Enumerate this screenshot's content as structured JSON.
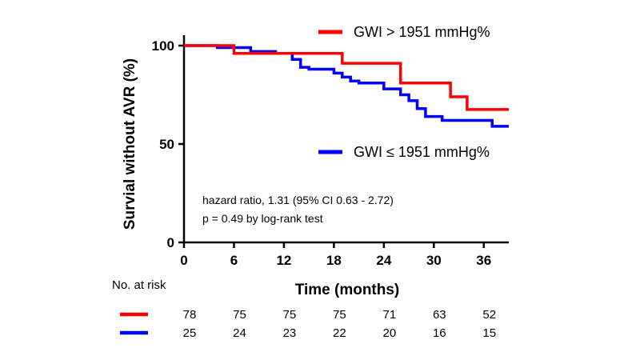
{
  "chart_data": {
    "type": "line",
    "subtype": "kaplan-meier",
    "xlabel": "Time (months)",
    "ylabel": "Survial without AVR (%)",
    "xlim": [
      0,
      39
    ],
    "ylim": [
      0,
      100
    ],
    "xticks": [
      0,
      6,
      12,
      18,
      24,
      30,
      36
    ],
    "yticks": [
      0,
      50,
      100
    ],
    "grid": false,
    "legend_placement": "top-right",
    "series": [
      {
        "name": "GWI > 1951 mmHg%",
        "color": "#ff0000",
        "points": [
          [
            0,
            100
          ],
          [
            6,
            100
          ],
          [
            6,
            96
          ],
          [
            12,
            96
          ],
          [
            19,
            96
          ],
          [
            19,
            91
          ],
          [
            26,
            91
          ],
          [
            26,
            81
          ],
          [
            32,
            81
          ],
          [
            32,
            74
          ],
          [
            34,
            74
          ],
          [
            34,
            67.5
          ],
          [
            39,
            67.5
          ]
        ]
      },
      {
        "name": "GWI ≤ 1951 mmHg%",
        "color": "#0000ff",
        "points": [
          [
            0,
            100
          ],
          [
            4,
            100
          ],
          [
            4,
            99
          ],
          [
            8,
            99
          ],
          [
            8,
            97
          ],
          [
            11,
            97
          ],
          [
            11,
            96
          ],
          [
            13,
            96
          ],
          [
            13,
            93
          ],
          [
            14,
            93
          ],
          [
            14,
            89
          ],
          [
            15,
            89
          ],
          [
            15,
            88
          ],
          [
            18,
            88
          ],
          [
            18,
            86
          ],
          [
            19,
            86
          ],
          [
            19,
            84
          ],
          [
            20,
            84
          ],
          [
            20,
            82
          ],
          [
            21,
            82
          ],
          [
            21,
            81
          ],
          [
            24,
            81
          ],
          [
            24,
            78
          ],
          [
            26,
            78
          ],
          [
            26,
            75
          ],
          [
            27,
            75
          ],
          [
            27,
            72
          ],
          [
            28,
            72
          ],
          [
            28,
            68
          ],
          [
            29,
            68
          ],
          [
            29,
            64
          ],
          [
            31,
            64
          ],
          [
            31,
            62
          ],
          [
            37,
            62
          ],
          [
            37,
            59
          ],
          [
            39,
            59
          ]
        ]
      }
    ],
    "annotations": [
      "hazard ratio, 1.31 (95% CI 0.63 - 2.72)",
      "p = 0.49 by log-rank test"
    ],
    "risk_table": {
      "label": "No. at risk",
      "times": [
        0,
        6,
        12,
        18,
        24,
        30,
        36
      ],
      "rows": [
        {
          "series": "GWI > 1951 mmHg%",
          "color": "#ff0000",
          "values": [
            78,
            75,
            75,
            75,
            71,
            63,
            52
          ]
        },
        {
          "series": "GWI ≤ 1951 mmHg%",
          "color": "#0000ff",
          "values": [
            25,
            24,
            23,
            22,
            20,
            16,
            15
          ]
        }
      ]
    }
  }
}
